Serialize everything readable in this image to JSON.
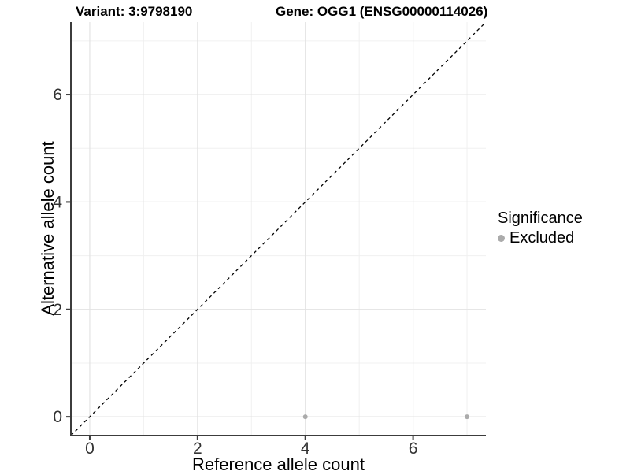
{
  "titles": {
    "variant": "Variant: 3:9798190",
    "gene": "Gene: OGG1 (ENSG00000114026)"
  },
  "chart_data": {
    "type": "scatter",
    "title_left": "Variant: 3:9798190",
    "title_right": "Gene: OGG1 (ENSG00000114026)",
    "xlabel": "Reference allele count",
    "ylabel": "Alternative allele count",
    "xlim": [
      -0.35,
      7.35
    ],
    "ylim": [
      -0.35,
      7.35
    ],
    "major_ticks": [
      0,
      2,
      4,
      6
    ],
    "minor_gridlines": [
      1,
      3,
      5,
      7
    ],
    "grid": true,
    "series": [
      {
        "name": "Excluded",
        "color": "#ababab",
        "points": [
          {
            "x": 4,
            "y": 0
          },
          {
            "x": 7,
            "y": 0
          }
        ]
      }
    ],
    "reference_line": {
      "type": "identity",
      "style": "dashed",
      "color": "#000000"
    },
    "legend": {
      "title": "Significance",
      "position": "right",
      "entries": [
        {
          "label": "Excluded",
          "color": "#ababab"
        }
      ]
    }
  },
  "colors": {
    "background": "#ffffff",
    "grid_major": "#e3e3e3",
    "grid_minor": "#f0f0f0",
    "axis_line": "#3c3c3c",
    "tick_text": "#333333",
    "point": "#ababab",
    "dashed_line": "#000000"
  }
}
